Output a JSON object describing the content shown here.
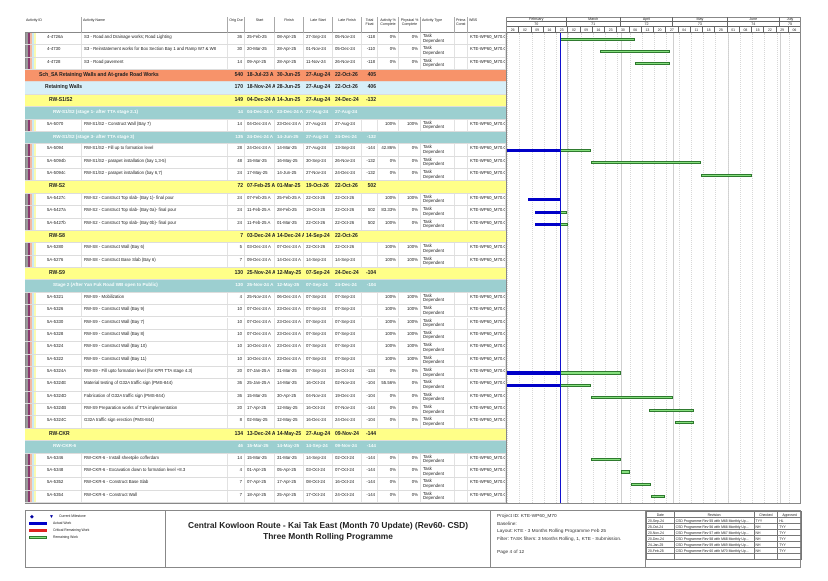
{
  "columns": {
    "activity_id": "Activity ID",
    "activity_name": "Activity Name",
    "orig_dur": "Orig Dur",
    "start": "Start",
    "finish": "Finish",
    "late_start": "Late Start",
    "late_finish": "Late Finish",
    "total_float": "Total Float",
    "activity_pct": "Activity % Complete",
    "physical_pct": "Physical % Complete",
    "activity_type": "Activity Type",
    "primary_constraint": "Prima Const",
    "wbs": "WBS"
  },
  "timescale": {
    "months": [
      {
        "label": "February",
        "num": "70"
      },
      {
        "label": "March",
        "num": "71"
      },
      {
        "label": "April",
        "num": "72"
      },
      {
        "label": "May",
        "num": "73"
      },
      {
        "label": "June",
        "num": "74"
      },
      {
        "label": "July",
        "num": "75"
      }
    ],
    "weeks": [
      "26",
      "02",
      "09",
      "16",
      "23",
      "02",
      "09",
      "16",
      "23",
      "30",
      "06",
      "13",
      "20",
      "27",
      "04",
      "11",
      "18",
      "25",
      "01",
      "08",
      "15",
      "22",
      "29",
      "06"
    ],
    "range_start": "26-Jan-25",
    "range_end": "13-Jul-25",
    "data_date": "25-Feb-25"
  },
  "colors": {
    "actual": "#0000c8",
    "remaining": "#86e07e",
    "critical": "#e02020",
    "data_date_line": "#1010d0"
  },
  "rows": [
    {
      "type": "task",
      "id": "4-4726a",
      "name": "S3 - Road and Drainage works; Road Lighting",
      "dur": "36",
      "start": "25-Feb-25",
      "finish": "08-Apr-25",
      "late_start": "27-Sep-24",
      "late_finish": "05-Nov-24",
      "float": "-118",
      "act_pct": "0%",
      "phys_pct": "0%",
      "act_type": "Task Dependent",
      "wbs": "KTE-WP60_M70.O"
    },
    {
      "type": "task",
      "id": "4-4730",
      "name": "S3 - Reinstatement works for Box Section Bay 1 and Ramp W7 & W8",
      "dur": "30",
      "start": "20-Mar-25",
      "finish": "28-Apr-25",
      "late_start": "01-Nov-24",
      "late_finish": "05-Dec-24",
      "float": "-110",
      "act_pct": "0%",
      "phys_pct": "0%",
      "act_type": "Task Dependent",
      "wbs": "KTE-WP60_M70.O"
    },
    {
      "type": "task",
      "id": "4-4728",
      "name": "S3 - Road pavement",
      "dur": "14",
      "start": "09-Apr-25",
      "finish": "28-Apr-25",
      "late_start": "11-Nov-24",
      "late_finish": "26-Nov-24",
      "float": "-118",
      "act_pct": "0%",
      "phys_pct": "0%",
      "act_type": "Task Dependent",
      "wbs": "KTE-WP60_M70.O"
    },
    {
      "type": "wbs1",
      "id": "",
      "name": "Sch_SA Retaining Walls and At-grade Road Works",
      "dur": "540",
      "start": "18-Jul-23 A",
      "finish": "30-Jun-25",
      "late_start": "27-Aug-24",
      "late_finish": "22-Oct-26",
      "float": "405"
    },
    {
      "type": "wbs2",
      "id": "",
      "name": "Retaining Walls",
      "dur": "170",
      "start": "18-Nov-24 A",
      "finish": "28-Jun-25",
      "late_start": "27-Aug-24",
      "late_finish": "22-Oct-26",
      "float": "406"
    },
    {
      "type": "wbs3",
      "id": "",
      "name": "RW-S1/S2",
      "dur": "149",
      "start": "04-Dec-24 A",
      "finish": "14-Jun-25",
      "late_start": "27-Aug-24",
      "late_finish": "24-Dec-24",
      "float": "-132"
    },
    {
      "type": "wbs4",
      "id": "",
      "name": "RW-S1/S2 (stage 1- after TTA stage 2.1)",
      "dur": "14",
      "start": "04-Dec-24 A",
      "finish": "23-Dec-24 A",
      "late_start": "27-Aug-24",
      "late_finish": "27-Aug-24",
      "float": ""
    },
    {
      "type": "task",
      "id": "5A-5070",
      "name": "RW-S1/S2 - Construct Wall (Bay 7)",
      "dur": "14",
      "start": "04-Dec-24 A",
      "finish": "23-Dec-24 A",
      "late_start": "27-Aug-24",
      "late_finish": "27-Aug-24",
      "float": "",
      "act_pct": "100%",
      "phys_pct": "100%",
      "act_type": "Task Dependent",
      "wbs": "KTE-WP60_M70.O"
    },
    {
      "type": "wbs4",
      "id": "",
      "name": "RW-S1/S2 (stage 3- after TTA stage 3)",
      "dur": "135",
      "start": "24-Dec-24 A",
      "finish": "14-Jun-25",
      "late_start": "27-Aug-24",
      "late_finish": "24-Dec-24",
      "float": "-132"
    },
    {
      "type": "task",
      "id": "5A-5094",
      "name": "RW-S1/S2 - Fill up to formation level",
      "dur": "28",
      "start": "24-Dec-24 A",
      "finish": "14-Mar-25",
      "late_start": "27-Aug-24",
      "late_finish": "13-Sep-24",
      "float": "-144",
      "act_pct": "42.86%",
      "phys_pct": "0%",
      "act_type": "Task Dependent",
      "wbs": "KTE-WP60_M70.O"
    },
    {
      "type": "task",
      "id": "5A-5094b",
      "name": "RW-S1/S2 - parapet installation (bay 1,3-5)",
      "dur": "48",
      "start": "15-Mar-25",
      "finish": "16-May-25",
      "late_start": "30-Sep-24",
      "late_finish": "26-Nov-24",
      "float": "-132",
      "act_pct": "0%",
      "phys_pct": "0%",
      "act_type": "Task Dependent",
      "wbs": "KTE-WP60_M70.O"
    },
    {
      "type": "task",
      "id": "5A-5094c",
      "name": "RW-S1/S2 - parapet installation (bay 6,7)",
      "dur": "24",
      "start": "17-May-25",
      "finish": "14-Jun-25",
      "late_start": "27-Nov-24",
      "late_finish": "24-Dec-24",
      "float": "-132",
      "act_pct": "0%",
      "phys_pct": "0%",
      "act_type": "Task Dependent",
      "wbs": "KTE-WP60_M70.O"
    },
    {
      "type": "wbs3",
      "id": "",
      "name": "RW-S2",
      "dur": "72",
      "start": "07-Feb-25 A",
      "finish": "01-Mar-25",
      "late_start": "19-Oct-26",
      "late_finish": "22-Oct-26",
      "float": "502"
    },
    {
      "type": "task",
      "id": "5A-5427c",
      "name": "RW-S2 - Construct Top slab- (Bay 1)- final pour",
      "dur": "24",
      "start": "07-Feb-25 A",
      "finish": "25-Feb-25 A",
      "late_start": "22-Oct-26",
      "late_finish": "22-Oct-26",
      "float": "",
      "act_pct": "100%",
      "phys_pct": "100%",
      "act_type": "Task Dependent",
      "wbs": "KTE-WP60_M70.O"
    },
    {
      "type": "task",
      "id": "5A-5427a",
      "name": "RW-S2 - Construct Top slab- (Bay 0a)- final pour",
      "dur": "24",
      "start": "11-Feb-25 A",
      "finish": "28-Feb-25",
      "late_start": "19-Oct-26",
      "late_finish": "22-Oct-26",
      "float": "502",
      "act_pct": "83.33%",
      "phys_pct": "0%",
      "act_type": "Task Dependent",
      "wbs": "KTE-WP60_M70.O"
    },
    {
      "type": "task",
      "id": "5A-5427b",
      "name": "RW-S2 - Construct Top slab- (Bay 0b)- final pour",
      "dur": "24",
      "start": "11-Feb-25 A",
      "finish": "01-Mar-25",
      "late_start": "22-Oct-26",
      "late_finish": "22-Oct-26",
      "float": "502",
      "act_pct": "100%",
      "phys_pct": "0%",
      "act_type": "Task Dependent",
      "wbs": "KTE-WP60_M70.O"
    },
    {
      "type": "wbs3",
      "id": "",
      "name": "RW-S8",
      "dur": "7",
      "start": "03-Dec-24 A",
      "finish": "14-Dec-24 A",
      "late_start": "14-Sep-24",
      "late_finish": "22-Oct-26",
      "float": ""
    },
    {
      "type": "task",
      "id": "5A-5280",
      "name": "RW-S8 - Construct Wall (Bay 6)",
      "dur": "5",
      "start": "03-Dec-24 A",
      "finish": "07-Dec-24 A",
      "late_start": "22-Oct-26",
      "late_finish": "22-Oct-26",
      "float": "",
      "act_pct": "100%",
      "phys_pct": "100%",
      "act_type": "Task Dependent",
      "wbs": "KTE-WP60_M70.O"
    },
    {
      "type": "task",
      "id": "5A-5276",
      "name": "RW-S8 - Construct Base Slab (Bay 6)",
      "dur": "7",
      "start": "09-Dec-24 A",
      "finish": "14-Dec-24 A",
      "late_start": "14-Sep-24",
      "late_finish": "14-Sep-24",
      "float": "",
      "act_pct": "100%",
      "phys_pct": "100%",
      "act_type": "Task Dependent",
      "wbs": "KTE-WP60_M70.O"
    },
    {
      "type": "wbs3",
      "id": "",
      "name": "RW-S9",
      "dur": "130",
      "start": "25-Nov-24 A",
      "finish": "12-May-25",
      "late_start": "07-Sep-24",
      "late_finish": "24-Dec-24",
      "float": "-104"
    },
    {
      "type": "wbs4",
      "id": "",
      "name": "Stage 2 (After Yan Fuk Road WB open to Public)",
      "dur": "130",
      "start": "25-Nov-24 A",
      "finish": "12-May-25",
      "late_start": "07-Sep-24",
      "late_finish": "24-Dec-24",
      "float": "-104"
    },
    {
      "type": "task",
      "id": "5A-5321",
      "name": "RW-S9 - Mobilization",
      "dur": "4",
      "start": "25-Nov-24 A",
      "finish": "06-Dec-24 A",
      "late_start": "07-Sep-24",
      "late_finish": "07-Sep-24",
      "float": "",
      "act_pct": "100%",
      "phys_pct": "100%",
      "act_type": "Task Dependent",
      "wbs": "KTE-WP60_M70.O"
    },
    {
      "type": "task",
      "id": "5A-5326",
      "name": "RW-S9 - Construct Wall (Bay 9)",
      "dur": "10",
      "start": "07-Dec-24 A",
      "finish": "23-Dec-24 A",
      "late_start": "07-Sep-24",
      "late_finish": "07-Sep-24",
      "float": "",
      "act_pct": "100%",
      "phys_pct": "100%",
      "act_type": "Task Dependent",
      "wbs": "KTE-WP60_M70.O"
    },
    {
      "type": "task",
      "id": "5A-5330",
      "name": "RW-S9 - Construct Wall (Bay 7)",
      "dur": "10",
      "start": "07-Dec-24 A",
      "finish": "23-Dec-24 A",
      "late_start": "07-Sep-24",
      "late_finish": "07-Sep-24",
      "float": "",
      "act_pct": "100%",
      "phys_pct": "100%",
      "act_type": "Task Dependent",
      "wbs": "KTE-WP60_M70.O"
    },
    {
      "type": "task",
      "id": "5A-5328",
      "name": "RW-S9 - Construct Wall (Bay 8)",
      "dur": "10",
      "start": "07-Dec-24 A",
      "finish": "23-Dec-24 A",
      "late_start": "07-Sep-24",
      "late_finish": "07-Sep-24",
      "float": "",
      "act_pct": "100%",
      "phys_pct": "100%",
      "act_type": "Task Dependent",
      "wbs": "KTE-WP60_M70.O"
    },
    {
      "type": "task",
      "id": "5A-5324",
      "name": "RW-S9 - Construct Wall (Bay 10)",
      "dur": "10",
      "start": "10-Dec-24 A",
      "finish": "23-Dec-24 A",
      "late_start": "07-Sep-24",
      "late_finish": "07-Sep-24",
      "float": "",
      "act_pct": "100%",
      "phys_pct": "100%",
      "act_type": "Task Dependent",
      "wbs": "KTE-WP60_M70.O"
    },
    {
      "type": "task",
      "id": "5A-5322",
      "name": "RW-S9 - Construct Wall (Bay 11)",
      "dur": "10",
      "start": "10-Dec-24 A",
      "finish": "23-Dec-24 A",
      "late_start": "07-Sep-24",
      "late_finish": "07-Sep-24",
      "float": "",
      "act_pct": "100%",
      "phys_pct": "100%",
      "act_type": "Task Dependent",
      "wbs": "KTE-WP60_M70.O"
    },
    {
      "type": "task",
      "id": "5A-5324A",
      "name": "RW-S9 - Fill upto formation level (for KPR TTA stage 4.3)",
      "dur": "20",
      "start": "07-Jan-25 A",
      "finish": "31-Mar-25",
      "late_start": "07-Sep-24",
      "late_finish": "15-Oct-24",
      "float": "-134",
      "act_pct": "0%",
      "phys_pct": "0%",
      "act_type": "Task Dependent",
      "wbs": "KTE-WP60_M70.O"
    },
    {
      "type": "task",
      "id": "5A-5324E",
      "name": "Material testing of G32A traffic sign (PMS-844)",
      "dur": "36",
      "start": "25-Jan-25 A",
      "finish": "14-Mar-25",
      "late_start": "16-Oct-24",
      "late_finish": "02-Nov-24",
      "float": "-104",
      "act_pct": "55.56%",
      "phys_pct": "0%",
      "act_type": "Task Dependent",
      "wbs": "KTE-WP60_M70.O"
    },
    {
      "type": "task",
      "id": "5A-5324D",
      "name": "Fabrication of G32A traffic sign (PMS-844)",
      "dur": "36",
      "start": "15-Mar-25",
      "finish": "30-Apr-25",
      "late_start": "04-Nov-24",
      "late_finish": "19-Dec-24",
      "float": "-104",
      "act_pct": "0%",
      "phys_pct": "0%",
      "act_type": "Task Dependent",
      "wbs": "KTE-WP60_M70.O"
    },
    {
      "type": "task",
      "id": "5A-5324B",
      "name": "RW-S9 Preparation works of TTA implementation",
      "dur": "20",
      "start": "17-Apr-25",
      "finish": "12-May-25",
      "late_start": "16-Oct-24",
      "late_finish": "07-Nov-24",
      "float": "-144",
      "act_pct": "0%",
      "phys_pct": "0%",
      "act_type": "Task Dependent",
      "wbs": "KTE-WP60_M70.O"
    },
    {
      "type": "task",
      "id": "5A-5324C",
      "name": "G32A traffic sign erection (PMS-844)",
      "dur": "8",
      "start": "02-May-25",
      "finish": "12-May-25",
      "late_start": "16-Dec-24",
      "late_finish": "24-Dec-24",
      "float": "-104",
      "act_pct": "0%",
      "phys_pct": "0%",
      "act_type": "Task Dependent",
      "wbs": "KTE-WP60_M70.O"
    },
    {
      "type": "wbs3",
      "id": "",
      "name": "RW-CKR",
      "dur": "134",
      "start": "13-Dec-24 A",
      "finish": "14-May-25",
      "late_start": "27-Aug-24",
      "late_finish": "09-Nov-24",
      "float": "-144"
    },
    {
      "type": "wbs4",
      "id": "",
      "name": "RW-CKR-6",
      "dur": "46",
      "start": "15-Mar-25",
      "finish": "14-May-25",
      "late_start": "14-Sep-24",
      "late_finish": "09-Nov-24",
      "float": "-144"
    },
    {
      "type": "task",
      "id": "5A-5346",
      "name": "RW-CKR-6 - Install sheetpile cofferdam",
      "dur": "14",
      "start": "15-Mar-25",
      "finish": "31-Mar-25",
      "late_start": "14-Sep-24",
      "late_finish": "02-Oct-24",
      "float": "-144",
      "act_pct": "0%",
      "phys_pct": "0%",
      "act_type": "Task Dependent",
      "wbs": "KTE-WP60_M70.O"
    },
    {
      "type": "task",
      "id": "5A-5348",
      "name": "RW-CKR-6 - Excavation down to formation level +8.3",
      "dur": "4",
      "start": "01-Apr-25",
      "finish": "05-Apr-25",
      "late_start": "03-Oct-24",
      "late_finish": "07-Oct-24",
      "float": "-144",
      "act_pct": "0%",
      "phys_pct": "0%",
      "act_type": "Task Dependent",
      "wbs": "KTE-WP60_M70.O"
    },
    {
      "type": "task",
      "id": "5A-5352",
      "name": "RW-CKR-6 - Construct Base Slab",
      "dur": "7",
      "start": "07-Apr-25",
      "finish": "17-Apr-25",
      "late_start": "08-Oct-24",
      "late_finish": "16-Oct-24",
      "float": "-144",
      "act_pct": "0%",
      "phys_pct": "0%",
      "act_type": "Task Dependent",
      "wbs": "KTE-WP60_M70.O"
    },
    {
      "type": "task",
      "id": "5A-5354",
      "name": "RW-CKR-6 - Construct Wall",
      "dur": "7",
      "start": "18-Apr-25",
      "finish": "25-Apr-25",
      "late_start": "17-Oct-24",
      "late_finish": "24-Oct-24",
      "float": "-144",
      "act_pct": "0%",
      "phys_pct": "0%",
      "act_type": "Task Dependent",
      "wbs": "KTE-WP60_M70.O"
    }
  ],
  "legend": {
    "items": [
      {
        "label": "Current Milestone",
        "kind": "milestone"
      },
      {
        "label": "Actual Work",
        "kind": "actual"
      },
      {
        "label": "Critical Remaining Work",
        "kind": "critical"
      },
      {
        "label": "Remaining Work",
        "kind": "remaining"
      }
    ]
  },
  "footer": {
    "title_line1": "Central Kowloon Route - Kai Tak East (Month 70 Update) (Rev60- CSD)",
    "title_line2": "Three Month Rolling Programme",
    "project_id": "Project ID: KTE-WP60_M70",
    "baseline": "Baseline:",
    "layout": "Layout: KTE - 3 Months Rolling Programme Feb 25",
    "filter": "Filter: TASK filters: 3 Months Rolling, 1, KTE - Submission.",
    "page": "Page 4 of 12"
  },
  "revisions": {
    "headers": [
      "Date",
      "Revision",
      "Checked",
      "Approved"
    ],
    "rows": [
      [
        "20-Sep-24",
        "CSD Programme Rev 55 with M65 Monthly Up...",
        "TYY",
        "HL"
      ],
      [
        "25-Oct-24",
        "CSD Programme Rev 56 with M66 Monthly Up...",
        "NH",
        "TYY"
      ],
      [
        "20-Nov-24",
        "CSD Programme Rev 57 with M67 Monthly Up...",
        "NH",
        "TYY"
      ],
      [
        "20-Dec-24",
        "CSD Programme Rev 58 with M68 Monthly Up...",
        "NH",
        "TYY"
      ],
      [
        "24-Jan-25",
        "CSD Programme Rev 59 with M69 Monthly Up...",
        "NH",
        "TYY"
      ],
      [
        "20-Feb-25",
        "CSD Programme Rev 60 with M70 Monthly Up...",
        "NH",
        "TYY"
      ]
    ]
  }
}
